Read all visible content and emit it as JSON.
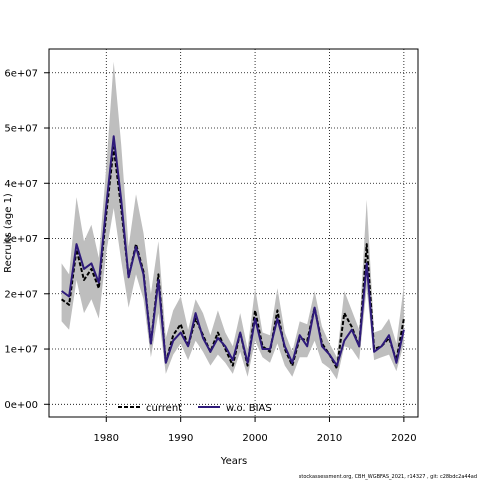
{
  "chart_data": {
    "type": "line",
    "xlabel": "Years",
    "ylabel": "Recruits (age 1)",
    "x": [
      1974,
      1975,
      1976,
      1977,
      1978,
      1979,
      1980,
      1981,
      1982,
      1983,
      1984,
      1985,
      1986,
      1987,
      1988,
      1989,
      1990,
      1991,
      1992,
      1993,
      1994,
      1995,
      1996,
      1997,
      1998,
      1999,
      2000,
      2001,
      2002,
      2003,
      2004,
      2005,
      2006,
      2007,
      2008,
      2009,
      2010,
      2011,
      2012,
      2013,
      2014,
      2015,
      2016,
      2017,
      2018,
      2019,
      2020
    ],
    "xlim": [
      1972.3,
      2021.9
    ],
    "ylim": [
      -2300000,
      64300000
    ],
    "xticks": [
      1980,
      1990,
      2000,
      2010,
      2020
    ],
    "xtick_labels": [
      "1980",
      "1990",
      "2000",
      "2010",
      "2020"
    ],
    "yticks": [
      0,
      10000000,
      20000000,
      30000000,
      40000000,
      50000000,
      60000000
    ],
    "ytick_labels": [
      "0e+00",
      "1e+07",
      "2e+07",
      "3e+07",
      "4e+07",
      "5e+07",
      "6e+07"
    ],
    "grid": true,
    "legend_position": "bottom-center",
    "band": {
      "color": "#bebebe",
      "upper": [
        25500000,
        23500000,
        37500000,
        29500000,
        32500000,
        26500000,
        43000000,
        62000000,
        47000000,
        28500000,
        38000000,
        31000000,
        20000000,
        29500000,
        12000000,
        17000000,
        19500000,
        13500000,
        19000000,
        16500000,
        12500000,
        17000000,
        13000000,
        10500000,
        16500000,
        10000000,
        21000000,
        13000000,
        12500000,
        21000000,
        13000000,
        9500000,
        15000000,
        14500000,
        20500000,
        14000000,
        11000000,
        8500000,
        20500000,
        17000000,
        13500000,
        37000000,
        13000000,
        13500000,
        15500000,
        11000000,
        21500000
      ],
      "lower": [
        15000000,
        13500000,
        22500000,
        16500000,
        19000000,
        15500000,
        27500000,
        35500000,
        26000000,
        17500000,
        23500000,
        19000000,
        8500000,
        16500000,
        5500000,
        9000000,
        11000000,
        8000000,
        11500000,
        9500000,
        7000000,
        9000000,
        7500000,
        5500000,
        9500000,
        5000000,
        11500000,
        8500000,
        7500000,
        11000000,
        7000000,
        5000000,
        8500000,
        8500000,
        11500000,
        7500000,
        6500000,
        4500000,
        10500000,
        10000000,
        8000000,
        21000000,
        8000000,
        8500000,
        9000000,
        6000000,
        11000000
      ]
    },
    "series": [
      {
        "name": "current",
        "color": "#000000",
        "values": [
          19000000,
          18000000,
          28000000,
          22500000,
          24500000,
          21000000,
          34500000,
          46500000,
          35500000,
          23000000,
          29000000,
          24000000,
          11000000,
          23500000,
          7500000,
          12500000,
          14500000,
          10500000,
          15500000,
          12500000,
          9500000,
          13000000,
          10000000,
          7000000,
          13000000,
          7000000,
          17000000,
          10500000,
          9500000,
          17000000,
          10000000,
          7000000,
          12000000,
          11500000,
          17500000,
          11000000,
          9000000,
          6500000,
          16500000,
          14000000,
          10500000,
          29000000,
          10000000,
          10500000,
          12000000,
          8000000,
          15500000
        ]
      },
      {
        "name": "w.o. BIAS",
        "color": "#2e1a7a",
        "values": [
          20500000,
          19500000,
          29000000,
          24500000,
          25500000,
          22000000,
          36000000,
          48500000,
          37000000,
          23000000,
          28500000,
          23500000,
          11000000,
          22500000,
          7500000,
          11500000,
          13000000,
          10500000,
          16500000,
          12000000,
          9500000,
          12000000,
          10500000,
          8000000,
          13000000,
          7500000,
          15500000,
          10000000,
          10000000,
          15500000,
          10500000,
          7500000,
          12500000,
          10500000,
          17500000,
          10500000,
          9000000,
          7000000,
          11500000,
          13500000,
          10500000,
          25500000,
          9500000,
          10500000,
          12500000,
          7500000,
          13500000
        ]
      }
    ]
  },
  "footer_text": "stockassessment.org, CBH_WGBFAS_2021, r14327 , git: c28bdc2a44ad"
}
